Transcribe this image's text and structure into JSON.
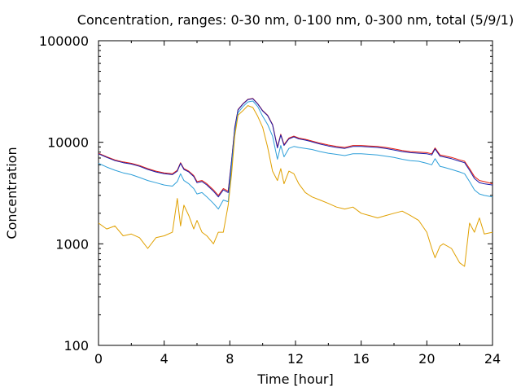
{
  "chart_data": {
    "type": "line",
    "title": "Concentration, ranges: 0-30 nm, 0-100 nm, 0-300 nm, total (5/9/1)",
    "xlabel": "Time [hour]",
    "ylabel": "Concentration",
    "xlim": [
      0,
      24
    ],
    "ylim": [
      100,
      100000
    ],
    "yscale": "log",
    "grid": false,
    "legend": "none",
    "xticks": [
      "0",
      "4",
      "8",
      "12",
      "16",
      "20",
      "24"
    ],
    "yticks": [
      "100",
      "1000",
      "10000",
      "100000"
    ],
    "x": [
      0,
      0.5,
      1,
      1.5,
      2,
      2.5,
      3,
      3.5,
      4,
      4.5,
      4.8,
      5,
      5.2,
      5.5,
      5.8,
      6,
      6.3,
      6.6,
      7,
      7.3,
      7.6,
      7.9,
      8.1,
      8.3,
      8.5,
      8.8,
      9.1,
      9.4,
      9.7,
      10,
      10.3,
      10.6,
      10.9,
      11.1,
      11.3,
      11.6,
      11.9,
      12.2,
      12.6,
      13,
      13.5,
      14,
      14.5,
      15,
      15.5,
      16,
      16.5,
      17,
      17.5,
      18,
      18.5,
      19,
      19.5,
      20,
      20.3,
      20.5,
      20.8,
      21,
      21.5,
      22,
      22.3,
      22.6,
      22.9,
      23.2,
      23.5,
      24
    ],
    "series": [
      {
        "color": "#e51e10",
        "values": [
          7800,
          7200,
          6700,
          6400,
          6200,
          5900,
          5500,
          5200,
          5000,
          4900,
          5300,
          6300,
          5500,
          5200,
          4700,
          4100,
          4200,
          3900,
          3400,
          3000,
          3500,
          3300,
          6500,
          14000,
          21000,
          24000,
          26500,
          27000,
          24000,
          20500,
          18500,
          15000,
          9000,
          12000,
          9500,
          11000,
          11500,
          11000,
          10700,
          10300,
          9800,
          9400,
          9100,
          8900,
          9300,
          9300,
          9200,
          9100,
          8900,
          8600,
          8300,
          8100,
          8000,
          7900,
          7700,
          8800,
          7500,
          7400,
          7100,
          6700,
          6500,
          5500,
          4600,
          4200,
          4100,
          3900
        ]
      },
      {
        "color": "#1a1aa8",
        "values": [
          7700,
          7100,
          6600,
          6300,
          6100,
          5800,
          5400,
          5100,
          4900,
          4800,
          5200,
          6200,
          5400,
          5100,
          4600,
          4000,
          4100,
          3800,
          3300,
          2900,
          3400,
          3200,
          6400,
          13800,
          20800,
          23800,
          26300,
          26800,
          23800,
          20300,
          18300,
          14800,
          8800,
          11800,
          9300,
          10800,
          11300,
          10800,
          10500,
          10100,
          9600,
          9200,
          8900,
          8700,
          9100,
          9100,
          9000,
          8900,
          8700,
          8400,
          8100,
          7900,
          7800,
          7700,
          7500,
          8600,
          7300,
          7200,
          6900,
          6500,
          6300,
          5300,
          4400,
          4000,
          3900,
          3800
        ]
      },
      {
        "color": "#2e9fd9",
        "values": [
          6200,
          5700,
          5300,
          5000,
          4800,
          4500,
          4200,
          4000,
          3800,
          3700,
          4100,
          4900,
          4200,
          3900,
          3500,
          3100,
          3200,
          2900,
          2500,
          2200,
          2700,
          2600,
          5600,
          12500,
          19500,
          22500,
          25000,
          25500,
          22500,
          18000,
          15000,
          11500,
          6800,
          9300,
          7200,
          8700,
          9100,
          8900,
          8700,
          8500,
          8100,
          7800,
          7600,
          7400,
          7700,
          7700,
          7600,
          7500,
          7300,
          7100,
          6800,
          6600,
          6500,
          6200,
          6000,
          6900,
          5800,
          5700,
          5400,
          5100,
          4900,
          4100,
          3400,
          3100,
          3000,
          2900
        ]
      },
      {
        "color": "#e0a000",
        "values": [
          1600,
          1400,
          1500,
          1200,
          1250,
          1150,
          900,
          1150,
          1200,
          1300,
          2800,
          1500,
          2400,
          1900,
          1400,
          1700,
          1300,
          1200,
          1000,
          1300,
          1300,
          2400,
          4800,
          11500,
          18500,
          20500,
          23000,
          22000,
          18000,
          14000,
          9000,
          5200,
          4200,
          5500,
          3900,
          5200,
          4900,
          3900,
          3200,
          2900,
          2700,
          2500,
          2300,
          2200,
          2300,
          2000,
          1900,
          1800,
          1900,
          2000,
          2100,
          1900,
          1700,
          1300,
          900,
          730,
          950,
          1000,
          900,
          650,
          600,
          1600,
          1300,
          1800,
          1250,
          1300
        ]
      }
    ]
  }
}
